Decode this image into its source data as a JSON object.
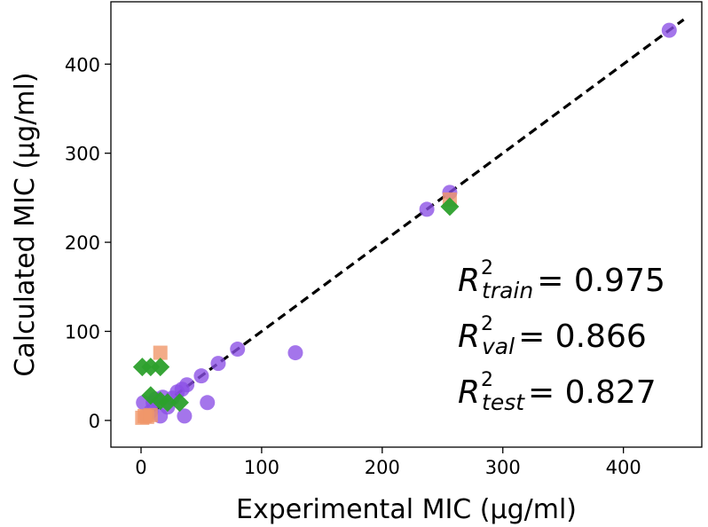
{
  "chart_data": {
    "type": "scatter",
    "xlabel": "Experimental MIC (μg/ml)",
    "ylabel": "Calculated MIC (μg/ml)",
    "xlim": [
      -25,
      465
    ],
    "ylim": [
      -30,
      470
    ],
    "xticks": [
      0,
      100,
      200,
      300,
      400
    ],
    "yticks": [
      0,
      100,
      200,
      300,
      400
    ],
    "grid": false,
    "series": [
      {
        "marker": "circle",
        "color": "#8a4ee6",
        "points": [
          [
            2,
            20
          ],
          [
            5,
            5
          ],
          [
            8,
            10
          ],
          [
            10,
            20
          ],
          [
            12,
            24
          ],
          [
            16,
            5
          ],
          [
            18,
            26
          ],
          [
            22,
            15
          ],
          [
            26,
            25
          ],
          [
            30,
            32
          ],
          [
            34,
            35
          ],
          [
            38,
            40
          ],
          [
            36,
            5
          ],
          [
            50,
            50
          ],
          [
            55,
            20
          ],
          [
            64,
            64
          ],
          [
            80,
            80
          ],
          [
            128,
            76
          ],
          [
            237,
            237
          ],
          [
            256,
            256
          ],
          [
            438,
            438
          ]
        ]
      },
      {
        "marker": "square",
        "color": "#f0976a",
        "points": [
          [
            1,
            3
          ],
          [
            3,
            5
          ],
          [
            5,
            4
          ],
          [
            8,
            6
          ],
          [
            16,
            76
          ],
          [
            256,
            248
          ]
        ]
      },
      {
        "marker": "diamond",
        "color": "#2ca02c",
        "points": [
          [
            1,
            60
          ],
          [
            8,
            60
          ],
          [
            16,
            60
          ],
          [
            8,
            28
          ],
          [
            16,
            22
          ],
          [
            22,
            20
          ],
          [
            32,
            20
          ],
          [
            256,
            240
          ]
        ]
      }
    ],
    "reference_line": {
      "x": [
        0,
        450
      ],
      "y": [
        0,
        450
      ],
      "style": "dashed",
      "color": "#000000"
    },
    "annotations": [
      {
        "symbol": "R",
        "superscript": "2",
        "subscript": "train",
        "value": "= 0.975"
      },
      {
        "symbol": "R",
        "superscript": "2",
        "subscript": "val",
        "value": "= 0.866"
      },
      {
        "symbol": "R",
        "superscript": "2",
        "subscript": "test",
        "value": "= 0.827"
      }
    ]
  }
}
